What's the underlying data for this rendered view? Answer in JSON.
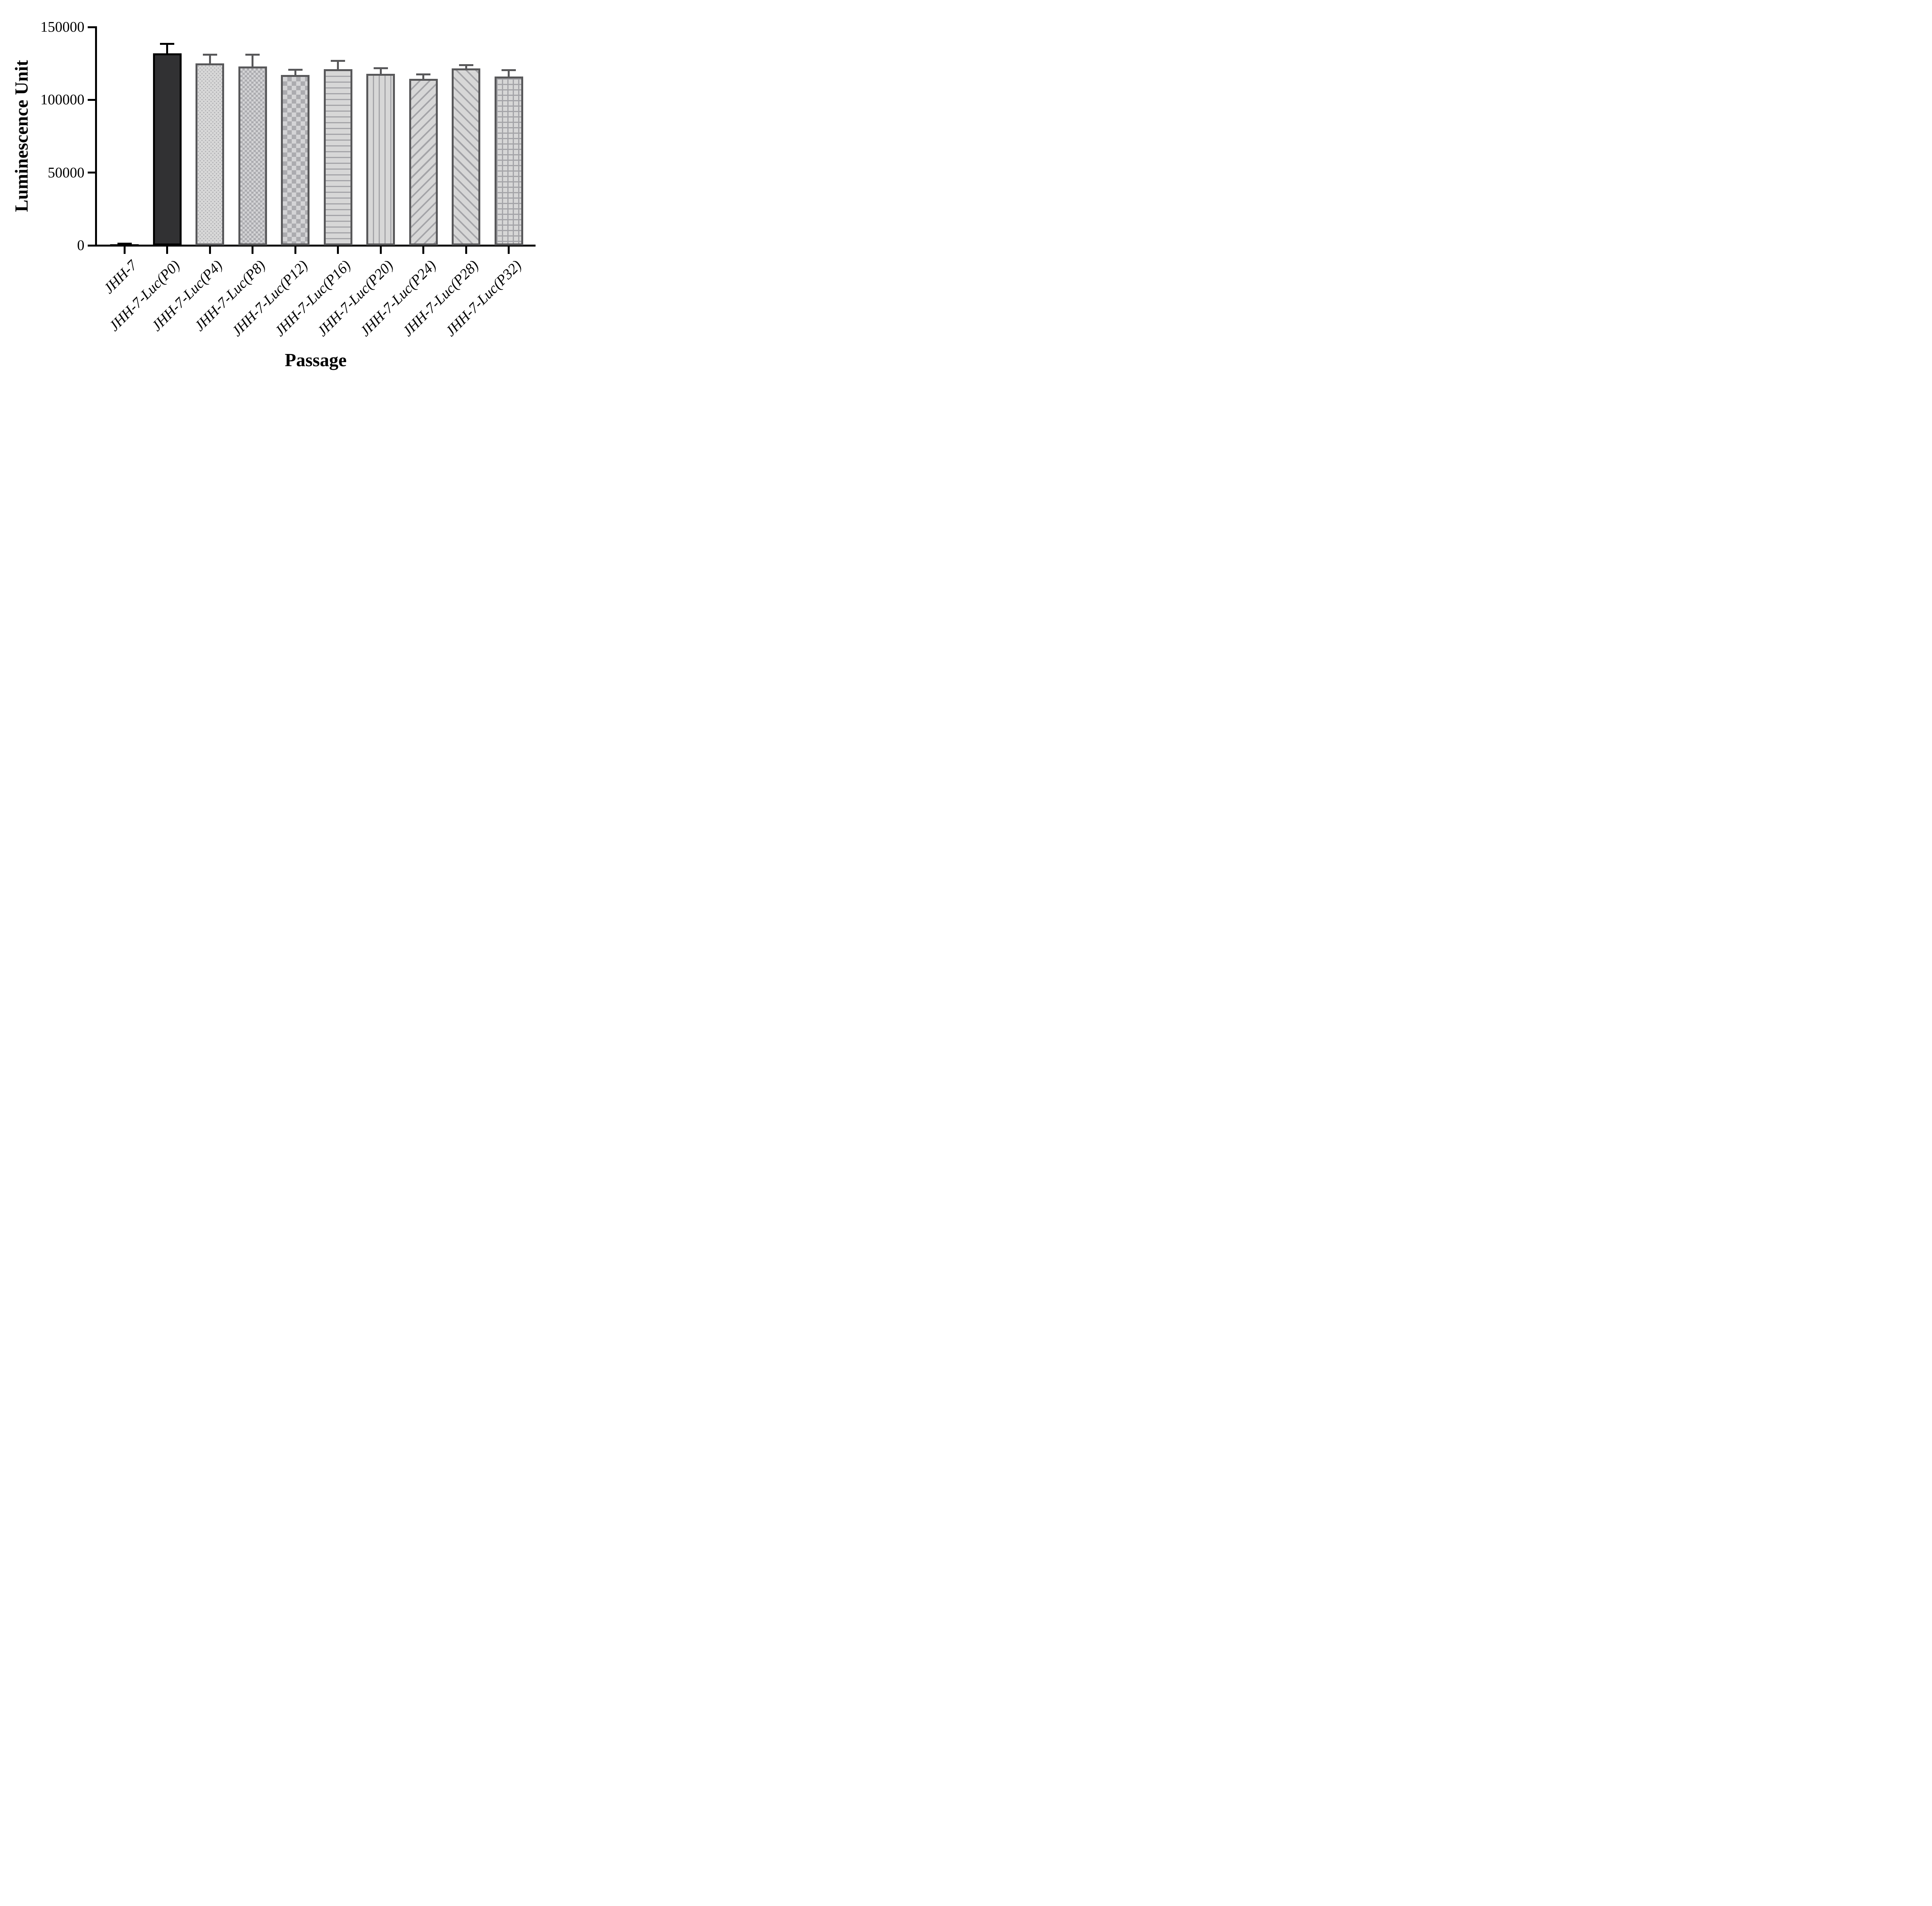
{
  "figure": {
    "background": "#ffffff"
  },
  "chart_data": {
    "type": "bar",
    "title": "",
    "xlabel": "Passage",
    "ylabel": "Luminescence Unit",
    "ylim": [
      0,
      150000
    ],
    "yticks": [
      0,
      50000,
      100000,
      150000
    ],
    "ytick_labels": [
      "0",
      "50000",
      "100000",
      "150000"
    ],
    "grid": false,
    "legend": false,
    "error_bars": "upper-only",
    "categories": [
      "JHH-7",
      "JHH-7-Luc(P0)",
      "JHH-7-Luc(P4)",
      "JHH-7-Luc(P8)",
      "JHH-7-Luc(P12)",
      "JHH-7-Luc(P16)",
      "JHH-7-Luc(P20)",
      "JHH-7-Luc(P24)",
      "JHH-7-Luc(P28)",
      "JHH-7-Luc(P32)"
    ],
    "values": [
      300,
      132000,
      125000,
      123000,
      117000,
      121000,
      118000,
      114500,
      121500,
      116000
    ],
    "errors": [
      1000,
      6500,
      6000,
      8000,
      3600,
      5900,
      3600,
      2900,
      2300,
      4500
    ],
    "bar_patterns": [
      "solid-black",
      "solid-dark",
      "dots",
      "checker-small",
      "checker-large",
      "hlines",
      "vlines",
      "diag-up",
      "diag-down",
      "grid"
    ],
    "colors": {
      "axis": "#000000",
      "dark_bar_fill": "#313133",
      "outline_gray": "#58585a",
      "pattern_gray": "#a4a4a8",
      "pattern_light": "#d7d7d7",
      "checker_dark": "#ababaf",
      "checker_light": "#d4d4d6"
    }
  }
}
